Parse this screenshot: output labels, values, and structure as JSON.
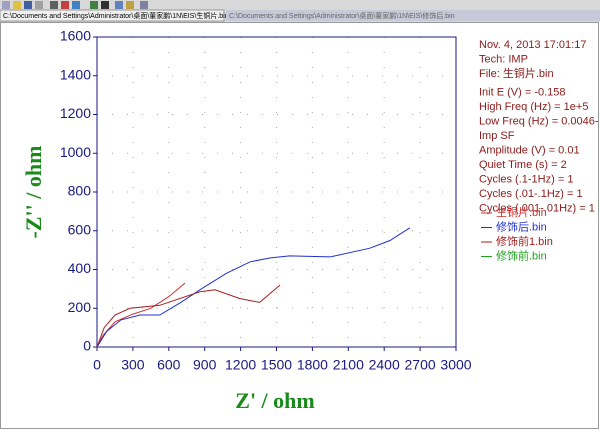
{
  "window": {
    "tab_title": "C:\\Documents and Settings\\Administrator\\桌面\\董家鹏\\1N\\EIS\\生铜片.bin",
    "tab_title_2": "C:\\Documents and Settings\\Administrator\\桌面\\董家鹏\\1N\\EIS\\修饰后.bin"
  },
  "chart_data": {
    "type": "line",
    "x_label": "Z' / ohm",
    "y_label": "-Z'' / ohm",
    "xlim": [
      0,
      3000
    ],
    "xticks": [
      0,
      300,
      600,
      900,
      1200,
      1500,
      1800,
      2100,
      2400,
      2700,
      3000
    ],
    "ylim": [
      0,
      1600
    ],
    "yticks": [
      0,
      200,
      400,
      600,
      800,
      1000,
      1200,
      1400,
      1600
    ],
    "grid": true,
    "annotations": [
      "Nov. 4, 2013   17:01:17",
      "Tech: IMP",
      "File: 生铜片.bin",
      "Init E (V) = -0.158",
      "High Freq (Hz) = 1e+5",
      "Low Freq (Hz) = 0.0046-",
      "Imp SF",
      "Amplitude (V) = 0.01",
      "Quiet Time (s) = 2",
      "Cycles (.1-1Hz) = 1",
      "Cycles (.01-.1Hz) = 1",
      "Cycles (.001-.01Hz) = 1"
    ],
    "series": [
      {
        "name": "生铜片.bin",
        "color": "#d03030",
        "x": [
          0,
          50,
          150,
          300,
          450,
          600,
          735
        ],
        "y": [
          0,
          60,
          130,
          170,
          200,
          260,
          330
        ]
      },
      {
        "name": "修饰后.bin",
        "color": "#2030d0",
        "x": [
          0,
          80,
          200,
          360,
          525,
          700,
          860,
          1080,
          1280,
          1450,
          1610,
          1950,
          2280,
          2450,
          2615
        ],
        "y": [
          0,
          80,
          140,
          165,
          165,
          230,
          295,
          380,
          440,
          460,
          470,
          465,
          510,
          550,
          615
        ]
      },
      {
        "name": "修饰前1.bin",
        "color": "#a02020",
        "x": [
          0,
          60,
          150,
          275,
          525,
          860,
          985,
          1195,
          1360,
          1530
        ],
        "y": [
          0,
          100,
          165,
          200,
          215,
          285,
          295,
          250,
          230,
          320
        ]
      },
      {
        "name": "修饰前.bin",
        "color": "#20a020",
        "x": [],
        "y": []
      }
    ]
  }
}
